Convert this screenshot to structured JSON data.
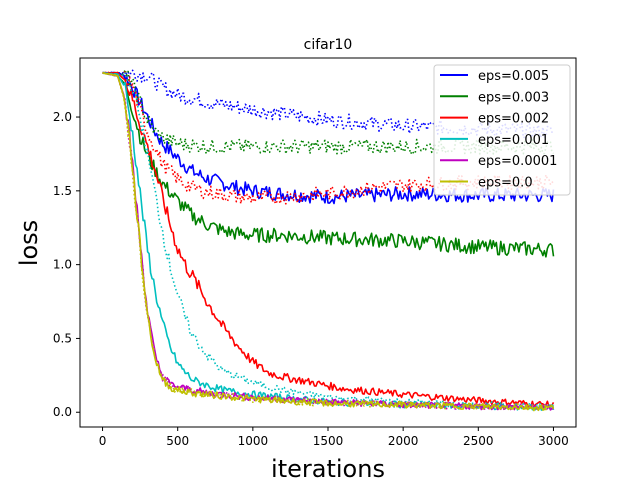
{
  "chart_data": {
    "type": "line",
    "title": "cifar10",
    "xlabel": "iterations",
    "ylabel": "loss",
    "xlim": [
      -150,
      3150
    ],
    "ylim": [
      -0.1,
      2.4
    ],
    "xticks": [
      0,
      500,
      1000,
      1500,
      2000,
      2500,
      3000
    ],
    "yticks": [
      0.0,
      0.5,
      1.0,
      1.5,
      2.0
    ],
    "xtick_labels": [
      "0",
      "500",
      "1000",
      "1500",
      "2000",
      "2500",
      "3000"
    ],
    "ytick_labels": [
      "0.0",
      "0.5",
      "1.0",
      "1.5",
      "2.0"
    ],
    "legend_position": "top-right",
    "legend": [
      "eps=0.005",
      "eps=0.003",
      "eps=0.002",
      "eps=0.001",
      "eps=0.0001",
      "eps=0.0"
    ],
    "series": [
      {
        "name": "eps=0.005",
        "color": "#0000ff",
        "style": "solid",
        "x": [
          0,
          100,
          150,
          200,
          250,
          300,
          350,
          400,
          500,
          600,
          700,
          800,
          900,
          1000,
          1200,
          1500,
          1800,
          2000,
          2500,
          3000
        ],
        "y": [
          2.3,
          2.3,
          2.28,
          2.2,
          2.1,
          2.0,
          1.9,
          1.82,
          1.72,
          1.63,
          1.58,
          1.55,
          1.52,
          1.5,
          1.48,
          1.46,
          1.47,
          1.48,
          1.47,
          1.47
        ]
      },
      {
        "name": "eps=0.005 (dotted)",
        "color": "#0000ff",
        "style": "dotted",
        "x": [
          0,
          200,
          300,
          350,
          400,
          500,
          700,
          1000,
          1500,
          2000,
          2500,
          3000
        ],
        "y": [
          2.3,
          2.3,
          2.28,
          2.24,
          2.2,
          2.15,
          2.1,
          2.05,
          1.98,
          1.94,
          1.92,
          1.9
        ]
      },
      {
        "name": "eps=0.003",
        "color": "#008000",
        "style": "solid",
        "x": [
          0,
          100,
          150,
          200,
          250,
          300,
          350,
          400,
          500,
          600,
          700,
          800,
          900,
          1000,
          1200,
          1500,
          2000,
          2500,
          3000
        ],
        "y": [
          2.3,
          2.28,
          2.22,
          2.05,
          1.87,
          1.74,
          1.64,
          1.55,
          1.43,
          1.33,
          1.27,
          1.23,
          1.21,
          1.2,
          1.2,
          1.18,
          1.16,
          1.12,
          1.1
        ]
      },
      {
        "name": "eps=0.003 (dotted)",
        "color": "#008000",
        "style": "dotted",
        "x": [
          0,
          150,
          200,
          250,
          300,
          350,
          400,
          500,
          700,
          1000,
          1500,
          2000,
          2500,
          3000
        ],
        "y": [
          2.3,
          2.29,
          2.22,
          2.1,
          1.98,
          1.9,
          1.86,
          1.82,
          1.8,
          1.8,
          1.8,
          1.8,
          1.8,
          1.8
        ]
      },
      {
        "name": "eps=0.002",
        "color": "#ff0000",
        "style": "solid",
        "x": [
          0,
          100,
          150,
          200,
          250,
          300,
          350,
          400,
          450,
          500,
          550,
          600,
          700,
          800,
          900,
          1000,
          1100,
          1200,
          1400,
          1600,
          1800,
          2000,
          2500,
          3000
        ],
        "y": [
          2.3,
          2.3,
          2.25,
          2.12,
          1.95,
          1.8,
          1.64,
          1.45,
          1.27,
          1.11,
          1.0,
          0.92,
          0.74,
          0.58,
          0.45,
          0.34,
          0.27,
          0.24,
          0.2,
          0.16,
          0.14,
          0.12,
          0.08,
          0.05
        ]
      },
      {
        "name": "eps=0.002 (dotted)",
        "color": "#ff0000",
        "style": "dotted",
        "x": [
          0,
          150,
          200,
          250,
          300,
          400,
          500,
          600,
          700,
          900,
          1000,
          1200,
          1500,
          1800,
          2000,
          2500,
          3000
        ],
        "y": [
          2.3,
          2.28,
          2.2,
          2.05,
          1.9,
          1.68,
          1.58,
          1.52,
          1.49,
          1.46,
          1.45,
          1.46,
          1.48,
          1.52,
          1.54,
          1.56,
          1.56
        ]
      },
      {
        "name": "eps=0.001",
        "color": "#00bfbf",
        "style": "solid",
        "x": [
          0,
          100,
          150,
          200,
          250,
          300,
          350,
          400,
          450,
          500,
          550,
          600,
          700,
          800,
          1000,
          1200,
          1500,
          2000,
          2500,
          3000
        ],
        "y": [
          2.3,
          2.29,
          2.2,
          1.88,
          1.48,
          1.1,
          0.82,
          0.6,
          0.44,
          0.33,
          0.27,
          0.22,
          0.18,
          0.15,
          0.12,
          0.1,
          0.07,
          0.05,
          0.04,
          0.03
        ]
      },
      {
        "name": "eps=0.001 (dotted)",
        "color": "#00bfbf",
        "style": "dotted",
        "x": [
          0,
          150,
          200,
          250,
          300,
          350,
          400,
          450,
          500,
          550,
          600,
          700,
          800,
          1000,
          1200,
          1500,
          2000,
          2500,
          3000
        ],
        "y": [
          2.3,
          2.28,
          2.2,
          2.0,
          1.74,
          1.48,
          1.22,
          0.99,
          0.8,
          0.64,
          0.52,
          0.38,
          0.28,
          0.2,
          0.15,
          0.1,
          0.07,
          0.05,
          0.04
        ]
      },
      {
        "name": "eps=0.0001",
        "color": "#bf00bf",
        "style": "solid",
        "x": [
          0,
          100,
          150,
          200,
          250,
          300,
          350,
          400,
          450,
          500,
          600,
          700,
          800,
          1000,
          1500,
          2000,
          2500,
          3000
        ],
        "y": [
          2.3,
          2.28,
          2.12,
          1.68,
          1.15,
          0.68,
          0.38,
          0.24,
          0.19,
          0.17,
          0.15,
          0.13,
          0.12,
          0.1,
          0.07,
          0.05,
          0.04,
          0.03
        ]
      },
      {
        "name": "eps=0.0001 (dotted)",
        "color": "#bf00bf",
        "style": "dotted",
        "x": [
          0,
          100,
          150,
          200,
          250,
          300,
          350,
          400,
          450,
          500,
          700,
          1000,
          1500,
          2000,
          2500,
          3000
        ],
        "y": [
          2.3,
          2.28,
          2.1,
          1.65,
          1.12,
          0.66,
          0.37,
          0.24,
          0.19,
          0.17,
          0.13,
          0.1,
          0.07,
          0.05,
          0.04,
          0.03
        ]
      },
      {
        "name": "eps=0.0",
        "color": "#bfbf00",
        "style": "solid",
        "x": [
          0,
          100,
          150,
          200,
          250,
          300,
          350,
          400,
          450,
          500,
          600,
          700,
          800,
          1000,
          1500,
          2000,
          2500,
          3000
        ],
        "y": [
          2.3,
          2.28,
          2.11,
          1.66,
          1.12,
          0.65,
          0.36,
          0.22,
          0.17,
          0.15,
          0.13,
          0.12,
          0.11,
          0.09,
          0.06,
          0.05,
          0.04,
          0.03
        ]
      },
      {
        "name": "eps=0.0 (dotted)",
        "color": "#bfbf00",
        "style": "dotted",
        "x": [
          0,
          100,
          150,
          200,
          250,
          300,
          350,
          400,
          450,
          500,
          700,
          1000,
          1500,
          2000,
          2500,
          3000
        ],
        "y": [
          2.3,
          2.28,
          2.1,
          1.64,
          1.1,
          0.64,
          0.36,
          0.22,
          0.17,
          0.15,
          0.12,
          0.09,
          0.06,
          0.05,
          0.04,
          0.03
        ]
      }
    ]
  }
}
